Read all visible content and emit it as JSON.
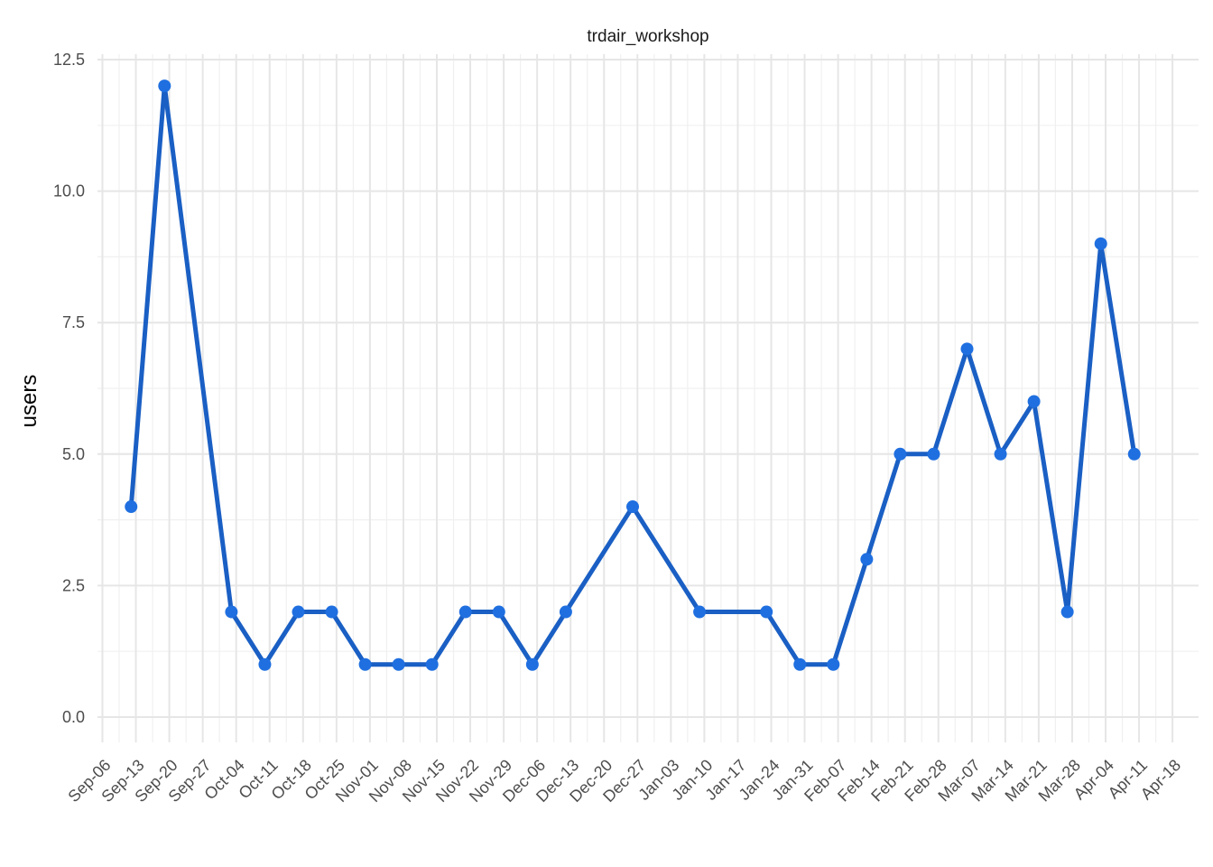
{
  "chart_data": {
    "type": "line",
    "title": "trdair_workshop",
    "xlabel": "",
    "ylabel": "users",
    "ylim": [
      -0.5,
      12.5
    ],
    "y_ticks": [
      0.0,
      2.5,
      5.0,
      7.5,
      10.0,
      12.5
    ],
    "y_tick_labels": [
      "0.0",
      "2.5",
      "5.0",
      "7.5",
      "10.0",
      "12.5"
    ],
    "x_tick_labels": [
      "Sep-06",
      "Sep-13",
      "Sep-20",
      "Sep-27",
      "Oct-04",
      "Oct-11",
      "Oct-18",
      "Oct-25",
      "Nov-01",
      "Nov-08",
      "Nov-15",
      "Nov-22",
      "Nov-29",
      "Dec-06",
      "Dec-13",
      "Dec-20",
      "Dec-27",
      "Jan-03",
      "Jan-10",
      "Jan-17",
      "Jan-24",
      "Jan-31",
      "Feb-07",
      "Feb-14",
      "Feb-21",
      "Feb-28",
      "Mar-07",
      "Mar-14",
      "Mar-21",
      "Mar-28",
      "Apr-04",
      "Apr-11",
      "Apr-18"
    ],
    "grid": true,
    "legend": "none",
    "series": [
      {
        "color": "#1a5fc4",
        "point_color": "#1f6fe0",
        "x": [
          "Sep-12",
          "Sep-19",
          "Oct-03",
          "Oct-10",
          "Oct-17",
          "Oct-24",
          "Oct-31",
          "Nov-07",
          "Nov-14",
          "Nov-21",
          "Nov-28",
          "Dec-05",
          "Dec-12",
          "Dec-26",
          "Jan-09",
          "Jan-23",
          "Jan-30",
          "Feb-06",
          "Feb-13",
          "Feb-20",
          "Feb-27",
          "Mar-06",
          "Mar-13",
          "Mar-20",
          "Mar-27",
          "Apr-03",
          "Apr-10"
        ],
        "values": [
          4,
          12,
          2,
          1,
          2,
          2,
          1,
          1,
          1,
          2,
          2,
          1,
          2,
          4,
          2,
          2,
          1,
          1,
          3,
          5,
          5,
          7,
          5,
          6,
          2,
          9,
          5
        ]
      }
    ]
  }
}
